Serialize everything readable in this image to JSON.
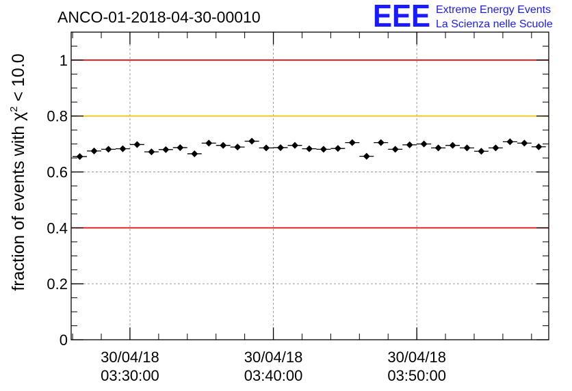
{
  "chart_data": {
    "type": "scatter",
    "title": "ANCO-01-2018-04-30-00010",
    "ylabel": "fraction of events with χ² < 10.0",
    "ylabel_base": "fraction of events with ",
    "ylabel_chi": "χ",
    "ylabel_sup": "2",
    "ylabel_tail": " < 10.0",
    "xlabel": "",
    "ylim": [
      0,
      1.1
    ],
    "xlim_minutes": [
      25.9,
      59.2
    ],
    "yticks": [
      0,
      0.2,
      0.4,
      0.6,
      0.8,
      1
    ],
    "ytick_labels": [
      "0",
      "0.2",
      "0.4",
      "0.6",
      "0.8",
      "1"
    ],
    "xticks_minutes": [
      30,
      40,
      50
    ],
    "xtick_labels": [
      {
        "date": "30/04/18",
        "time": "03:30:00"
      },
      {
        "date": "30/04/18",
        "time": "03:40:00"
      },
      {
        "date": "30/04/18",
        "time": "03:50:00"
      }
    ],
    "reference_lines": [
      {
        "y": 1.0,
        "color": "#e8000b"
      },
      {
        "y": 0.8,
        "color": "#ffc000"
      },
      {
        "y": 0.4,
        "color": "#e8000b"
      }
    ],
    "bin_width_minutes": 1.0,
    "grid": true,
    "series": [
      {
        "name": "fraction",
        "x_minutes": [
          26.5,
          27.5,
          28.5,
          29.5,
          30.5,
          31.5,
          32.5,
          33.5,
          34.5,
          35.5,
          36.5,
          37.5,
          38.5,
          39.5,
          40.5,
          41.5,
          42.5,
          43.5,
          44.5,
          45.5,
          46.5,
          47.5,
          48.5,
          49.5,
          50.5,
          51.5,
          52.5,
          53.5,
          54.5,
          55.5,
          56.5,
          57.5,
          58.5
        ],
        "values": [
          0.655,
          0.675,
          0.681,
          0.683,
          0.698,
          0.672,
          0.68,
          0.687,
          0.665,
          0.703,
          0.695,
          0.689,
          0.71,
          0.686,
          0.687,
          0.695,
          0.683,
          0.681,
          0.684,
          0.705,
          0.656,
          0.705,
          0.681,
          0.697,
          0.7,
          0.686,
          0.695,
          0.686,
          0.674,
          0.686,
          0.708,
          0.703,
          0.69
        ],
        "errors": [
          0.01,
          0.01,
          0.01,
          0.01,
          0.01,
          0.01,
          0.01,
          0.01,
          0.01,
          0.01,
          0.01,
          0.01,
          0.01,
          0.01,
          0.01,
          0.01,
          0.01,
          0.01,
          0.01,
          0.01,
          0.01,
          0.01,
          0.01,
          0.01,
          0.01,
          0.01,
          0.01,
          0.01,
          0.01,
          0.01,
          0.01,
          0.01,
          0.01
        ]
      }
    ]
  },
  "logo": {
    "mark": "EEE",
    "line1": "Extreme Energy Events",
    "line2": "La Scienza nelle Scuole",
    "color": "#1a1aff"
  }
}
